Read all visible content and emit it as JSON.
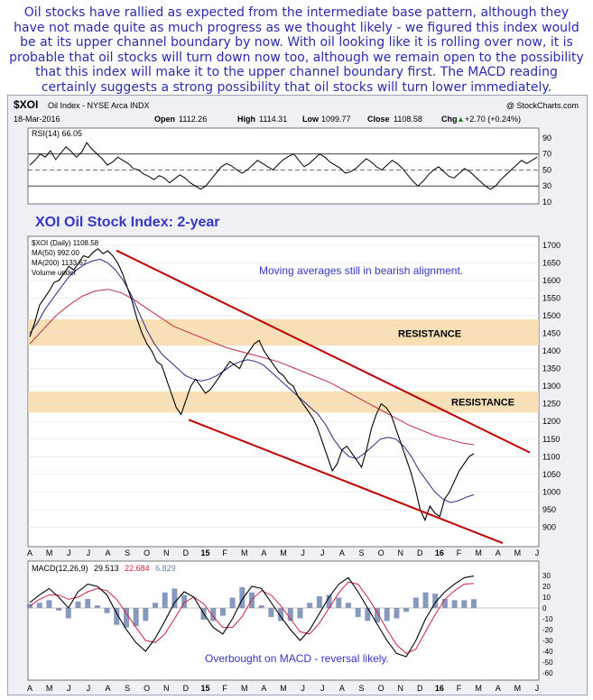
{
  "commentary": "Oil stocks have rallied as expected from the intermediate base pattern, although they have not made quite as much progress as we thought likely - we figured this index would be at its upper channel boundary by now.  With oil looking like it is rolling over now, it is probable that oil stocks will turn down now too, although we remain open to the possibility that this index will make it to the upper channel boundary first. The MACD reading certainly suggests a strong possibility that oil stocks will turn lower immediately.",
  "header": {
    "symbol": "$XOI",
    "name": "Oil Index - NYSE Arca  INDX",
    "date": "18-Mar-2016",
    "watermark": "@ StockCharts.com",
    "open_label": "Open",
    "open": "1112.26",
    "high_label": "High",
    "high": "1114.31",
    "low_label": "Low",
    "low": "1099.77",
    "close_label": "Close",
    "close": "1108.58",
    "chg_label": "Chg",
    "chg": "+2.70 (+0.24%)",
    "chg_arrow": "▲"
  },
  "colors": {
    "price": "#000000",
    "ma50": "#2a2a8a",
    "ma200": "#c0304a",
    "channel": "#c00000",
    "resistance": "#f7d9a8",
    "annotation": "#3737c8",
    "macd": "#000000",
    "signal": "#d02040",
    "hist": "#6a7fb0"
  },
  "chart_data": [
    {
      "type": "line",
      "title": "RSI(14) 66.05",
      "ylim": [
        10,
        100
      ],
      "yticks": [
        "90",
        "70",
        "50",
        "30",
        "10"
      ],
      "reference_lines": [
        70,
        50,
        30
      ],
      "series": [
        {
          "name": "RSI(14)",
          "last": 66.05,
          "values": [
            56,
            62,
            70,
            66,
            74,
            63,
            71,
            79,
            73,
            66,
            72,
            84,
            76,
            70,
            64,
            56,
            60,
            66,
            62,
            58,
            52,
            50,
            45,
            42,
            38,
            43,
            40,
            34,
            39,
            44,
            40,
            34,
            30,
            26,
            30,
            38,
            46,
            54,
            58,
            55,
            50,
            46,
            50,
            56,
            62,
            58,
            54,
            50,
            57,
            63,
            67,
            70,
            62,
            54,
            58,
            64,
            70,
            66,
            60,
            56,
            52,
            46,
            48,
            52,
            58,
            64,
            60,
            54,
            50,
            56,
            62,
            58,
            52,
            44,
            36,
            30,
            36,
            44,
            50,
            54,
            48,
            42,
            40,
            46,
            52,
            48,
            42,
            36,
            30,
            26,
            30,
            38,
            44,
            50,
            56,
            62,
            58,
            62,
            66
          ]
        }
      ]
    },
    {
      "type": "line",
      "title": "XOI Oil Stock Index: 2-year",
      "ylim": [
        850,
        1720
      ],
      "yticks": [
        "1700",
        "1650",
        "1600",
        "1550",
        "1500",
        "1450",
        "1400",
        "1350",
        "1300",
        "1250",
        "1200",
        "1150",
        "1100",
        "1050",
        "1000",
        "950",
        "900"
      ],
      "x_ticks": [
        "A",
        "M",
        "J",
        "J",
        "A",
        "S",
        "O",
        "N",
        "D",
        "15",
        "F",
        "M",
        "A",
        "M",
        "J",
        "J",
        "A",
        "S",
        "O",
        "N",
        "D",
        "16",
        "F",
        "M",
        "A",
        "M",
        "J"
      ],
      "legend": [
        "$XOI (Daily) 1108.58",
        "MA(50) 992.00",
        "MA(200) 1133.67",
        "Volume undef"
      ],
      "series": [
        {
          "name": "$XOI (Daily)",
          "values": [
            1440,
            1480,
            1530,
            1550,
            1570,
            1595,
            1600,
            1620,
            1640,
            1630,
            1650,
            1670,
            1665,
            1680,
            1690,
            1676,
            1684,
            1670,
            1650,
            1620,
            1580,
            1540,
            1490,
            1450,
            1420,
            1400,
            1370,
            1360,
            1320,
            1280,
            1240,
            1220,
            1260,
            1300,
            1320,
            1300,
            1280,
            1290,
            1310,
            1330,
            1350,
            1370,
            1360,
            1350,
            1380,
            1400,
            1420,
            1430,
            1400,
            1380,
            1360,
            1340,
            1330,
            1310,
            1300,
            1270,
            1250,
            1230,
            1210,
            1180,
            1140,
            1100,
            1060,
            1080,
            1120,
            1130,
            1110,
            1090,
            1070,
            1120,
            1180,
            1220,
            1250,
            1240,
            1220,
            1180,
            1140,
            1100,
            1060,
            1010,
            950,
            920,
            960,
            940,
            930,
            980,
            1000,
            1030,
            1060,
            1080,
            1100,
            1108.58
          ]
        },
        {
          "name": "MA(50)",
          "last": 992.0,
          "values": [
            1450,
            1480,
            1520,
            1550,
            1580,
            1610,
            1630,
            1645,
            1655,
            1660,
            1650,
            1630,
            1600,
            1560,
            1510,
            1460,
            1420,
            1390,
            1370,
            1350,
            1330,
            1320,
            1315,
            1320,
            1330,
            1345,
            1360,
            1370,
            1375,
            1370,
            1360,
            1340,
            1320,
            1300,
            1280,
            1260,
            1240,
            1220,
            1190,
            1150,
            1120,
            1100,
            1095,
            1110,
            1130,
            1150,
            1155,
            1150,
            1130,
            1100,
            1060,
            1030,
            1000,
            980,
            970,
            975,
            985,
            992
          ]
        },
        {
          "name": "MA(200)",
          "last": 1133.67,
          "values": [
            1420,
            1460,
            1500,
            1530,
            1555,
            1570,
            1575,
            1565,
            1545,
            1520,
            1495,
            1470,
            1455,
            1440,
            1425,
            1410,
            1400,
            1390,
            1380,
            1370,
            1355,
            1340,
            1325,
            1310,
            1290,
            1270,
            1250,
            1230,
            1210,
            1190,
            1175,
            1160,
            1150,
            1140,
            1134
          ]
        }
      ],
      "annotations": [
        {
          "text": "Moving averages still in bearish alignment."
        },
        {
          "text": "RESISTANCE",
          "level": 1450
        },
        {
          "text": "RESISTANCE",
          "level": 1255
        }
      ],
      "resistance_zones": [
        [
          1415,
          1490
        ],
        [
          1225,
          1285
        ]
      ],
      "channel": {
        "upper": [
          [
            1685,
            1112
          ]
        ],
        "lower": [
          [
            1205,
            855
          ]
        ]
      }
    },
    {
      "type": "line",
      "title": "MACD(12,26,9)",
      "ylim": [
        -65,
        40
      ],
      "yticks": [
        "30",
        "20",
        "10",
        "0",
        "-10",
        "-20",
        "-30",
        "-40",
        "-50",
        "-60"
      ],
      "macd": "29.513",
      "signal": "22.684",
      "histogram": "6.829",
      "annotation": "Overbought on MACD - reversal likely.",
      "series": [
        {
          "name": "MACD",
          "values": [
            5,
            12,
            18,
            10,
            0,
            15,
            22,
            20,
            12,
            -5,
            -20,
            -32,
            -40,
            -28,
            -12,
            5,
            15,
            10,
            -5,
            -18,
            -24,
            -10,
            8,
            20,
            18,
            5,
            -8,
            -20,
            -30,
            -20,
            -5,
            10,
            22,
            28,
            15,
            0,
            -15,
            -30,
            -42,
            -45,
            -30,
            -10,
            5,
            15,
            22,
            28,
            29.5
          ]
        },
        {
          "name": "Signal",
          "values": [
            2,
            8,
            12,
            12,
            8,
            10,
            15,
            18,
            16,
            8,
            -5,
            -18,
            -30,
            -32,
            -24,
            -10,
            5,
            10,
            4,
            -8,
            -18,
            -18,
            -8,
            8,
            16,
            12,
            2,
            -10,
            -22,
            -24,
            -14,
            0,
            14,
            24,
            22,
            10,
            -4,
            -20,
            -34,
            -42,
            -38,
            -22,
            -6,
            8,
            16,
            22,
            22.7
          ]
        }
      ],
      "x_ticks": [
        "A",
        "M",
        "J",
        "J",
        "A",
        "S",
        "O",
        "N",
        "D",
        "15",
        "F",
        "M",
        "A",
        "M",
        "J",
        "J",
        "A",
        "S",
        "O",
        "N",
        "D",
        "16",
        "F",
        "M",
        "A",
        "M",
        "J"
      ]
    }
  ]
}
